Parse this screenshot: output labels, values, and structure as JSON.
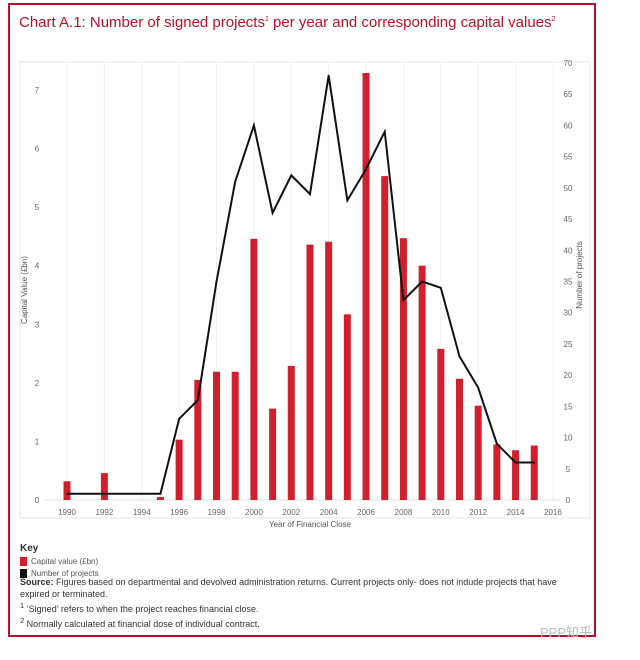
{
  "title": {
    "text": "Chart A.1: Number of signed projects",
    "sup1": "1",
    "mid": " per year and corresponding capital values",
    "sup2": "2"
  },
  "chart_data": {
    "type": "bar+line",
    "categories": [
      1990,
      1991,
      1992,
      1993,
      1994,
      1995,
      1996,
      1997,
      1998,
      1999,
      2000,
      2001,
      2002,
      2003,
      2004,
      2005,
      2006,
      2007,
      2008,
      2009,
      2010,
      2011,
      2012,
      2013,
      2014,
      2015
    ],
    "series": [
      {
        "name": "Capital value (£bn)",
        "type": "bar",
        "axis": "left",
        "color": "#d0202e",
        "values": [
          0.32,
          0,
          0.46,
          0,
          0,
          0.05,
          1.03,
          2.05,
          2.19,
          2.19,
          4.46,
          1.56,
          2.29,
          4.36,
          4.41,
          3.17,
          7.29,
          5.53,
          4.47,
          4.0,
          2.58,
          2.07,
          1.61,
          0.95,
          0.85,
          0.93
        ]
      },
      {
        "name": "Number of projects",
        "type": "line",
        "axis": "right",
        "color": "#111111",
        "values": [
          1,
          1,
          1,
          1,
          1,
          1,
          13,
          16,
          35,
          51,
          60,
          46,
          52,
          49,
          68,
          48,
          53,
          59,
          32,
          35,
          34,
          23,
          18,
          9,
          6,
          6
        ]
      }
    ],
    "xlabel": "Year of Financial Close",
    "ylabel_left": "Capital Value (£bn)",
    "ylabel_right": "Number of projects",
    "xticks": [
      1990,
      1992,
      1994,
      1996,
      1998,
      2000,
      2002,
      2004,
      2006,
      2008,
      2010,
      2012,
      2014,
      2016
    ],
    "ylim_left": [
      0,
      7
    ],
    "yticks_left": [
      0,
      1,
      2,
      3,
      4,
      5,
      6,
      7
    ],
    "ylim_right": [
      0,
      70
    ],
    "yticks_right": [
      0,
      5,
      10,
      15,
      20,
      25,
      30,
      35,
      40,
      45,
      50,
      55,
      60,
      65,
      70
    ],
    "grid": "vertical light"
  },
  "key": {
    "title": "Key",
    "items": [
      "Capital value (£bn)",
      "Number of projects"
    ]
  },
  "notes": {
    "source_label": "Source:",
    "source_text": " Figures based on departmental and devolved administration returns. Current projects only- does not indude projects that have expired or terminated.",
    "note1_sup": "1",
    "note1": " ‘Signed’ refers to when the project reaches financial close.",
    "note2_sup": "2",
    "note2": " Normally calculated at financial dose of individual contract."
  },
  "watermark": "PPP知乎"
}
